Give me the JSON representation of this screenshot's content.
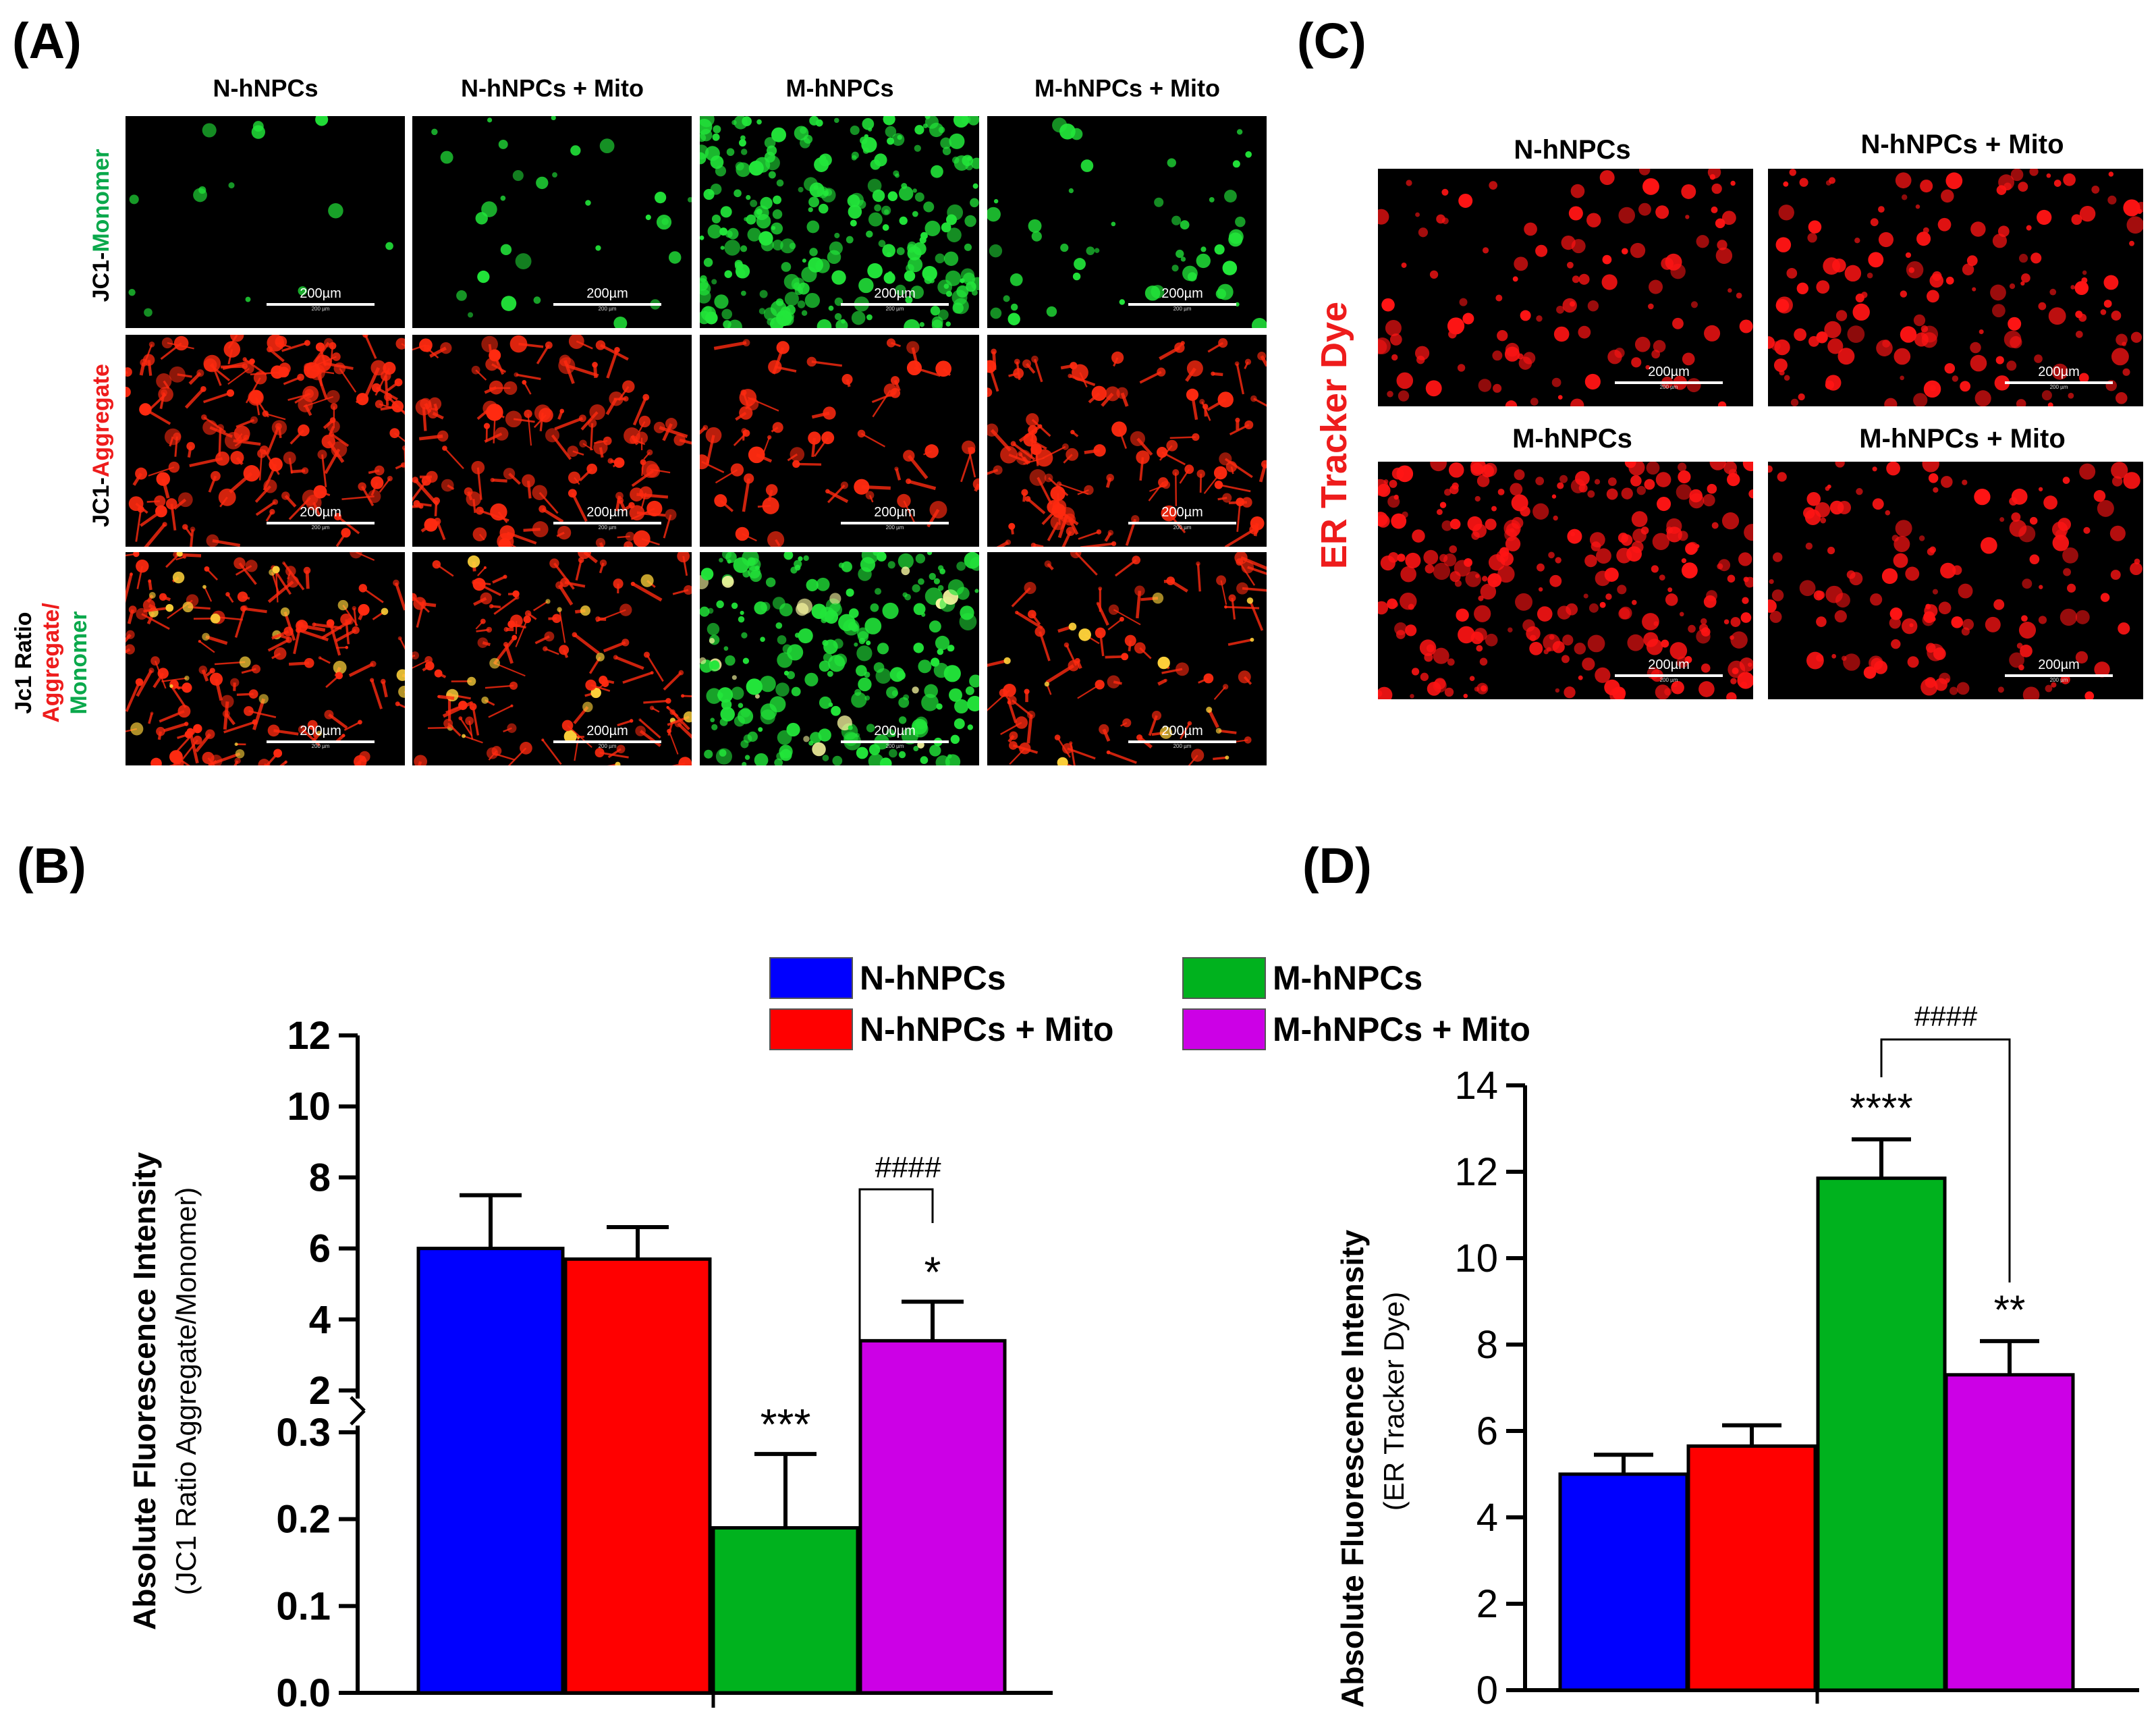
{
  "panels": {
    "a": "(A)",
    "b": "(B)",
    "c": "(C)",
    "d": "(D)"
  },
  "panelA": {
    "columns": [
      "N-hNPCs",
      "N-hNPCs + Mito",
      "M-hNPCs",
      "M-hNPCs + Mito"
    ],
    "rows": {
      "monomer": {
        "prefix": "JC1-",
        "suffix": "Monomer"
      },
      "aggregate": {
        "prefix": "JC1-",
        "suffix": "Aggregate"
      },
      "ratio": {
        "line1": "Jc1 Ratio",
        "line2": "Aggregate/",
        "line3": "Monomer"
      }
    },
    "scalebar": "200µm",
    "scalebar_small": "200 µm"
  },
  "panelC": {
    "row_label": "ER Tracker Dye",
    "titles": [
      "N-hNPCs",
      "N-hNPCs + Mito",
      "M-hNPCs",
      "M-hNPCs + Mito"
    ],
    "scalebar": "200µm",
    "scalebar_small": "200 µm"
  },
  "legend": [
    {
      "label": "N-hNPCs",
      "color": "#0000ff"
    },
    {
      "label": "M-hNPCs",
      "color": "#00b21e"
    },
    {
      "label": "N-hNPCs + Mito",
      "color": "#ff0000"
    },
    {
      "label": "M-hNPCs + Mito",
      "color": "#cc00e6"
    }
  ],
  "colors": {
    "monomer_green": "#22e63a",
    "aggregate_red": "#ff2a10",
    "er_red": "#ff1414"
  },
  "chart_data": [
    {
      "type": "bar",
      "panel": "B",
      "ylabel_line1": "Absolute Fluorescence Intensity",
      "ylabel_line2": "(JC1 Ratio Aggregate/Monomer)",
      "axis_break": true,
      "lower_ylim": [
        0,
        0.3
      ],
      "lower_ticks": [
        "0.0",
        "0.1",
        "0.2",
        "0.3"
      ],
      "upper_ylim": [
        2,
        12
      ],
      "upper_ticks": [
        "2",
        "4",
        "6",
        "8",
        "10",
        "12"
      ],
      "categories": [
        "N-hNPCs",
        "N-hNPCs + Mito",
        "M-hNPCs",
        "M-hNPCs + Mito"
      ],
      "values": [
        6.0,
        5.7,
        0.19,
        3.4
      ],
      "errors": [
        1.5,
        0.9,
        0.085,
        1.1
      ],
      "significance": [
        "",
        "",
        "***",
        "*"
      ],
      "bracket": {
        "from": 2,
        "to": 3,
        "label": "####"
      },
      "colors": [
        "#0000ff",
        "#ff0000",
        "#00b21e",
        "#cc00e6"
      ]
    },
    {
      "type": "bar",
      "panel": "D",
      "ylabel_line1": "Absolute Fluorescence Intensity",
      "ylabel_line2": "(ER Tracker Dye)",
      "ylim": [
        0,
        14
      ],
      "ticks": [
        "0",
        "2",
        "4",
        "6",
        "8",
        "10",
        "12",
        "14"
      ],
      "categories": [
        "N-hNPCs",
        "N-hNPCs + Mito",
        "M-hNPCs",
        "M-hNPCs + Mito"
      ],
      "values": [
        5.0,
        5.65,
        11.85,
        7.3
      ],
      "errors": [
        0.45,
        0.48,
        0.9,
        0.78
      ],
      "significance": [
        "",
        "",
        "****",
        "**"
      ],
      "bracket": {
        "from": 2,
        "to": 3,
        "label": "####"
      },
      "colors": [
        "#0000ff",
        "#ff0000",
        "#00b21e",
        "#cc00e6"
      ]
    }
  ]
}
